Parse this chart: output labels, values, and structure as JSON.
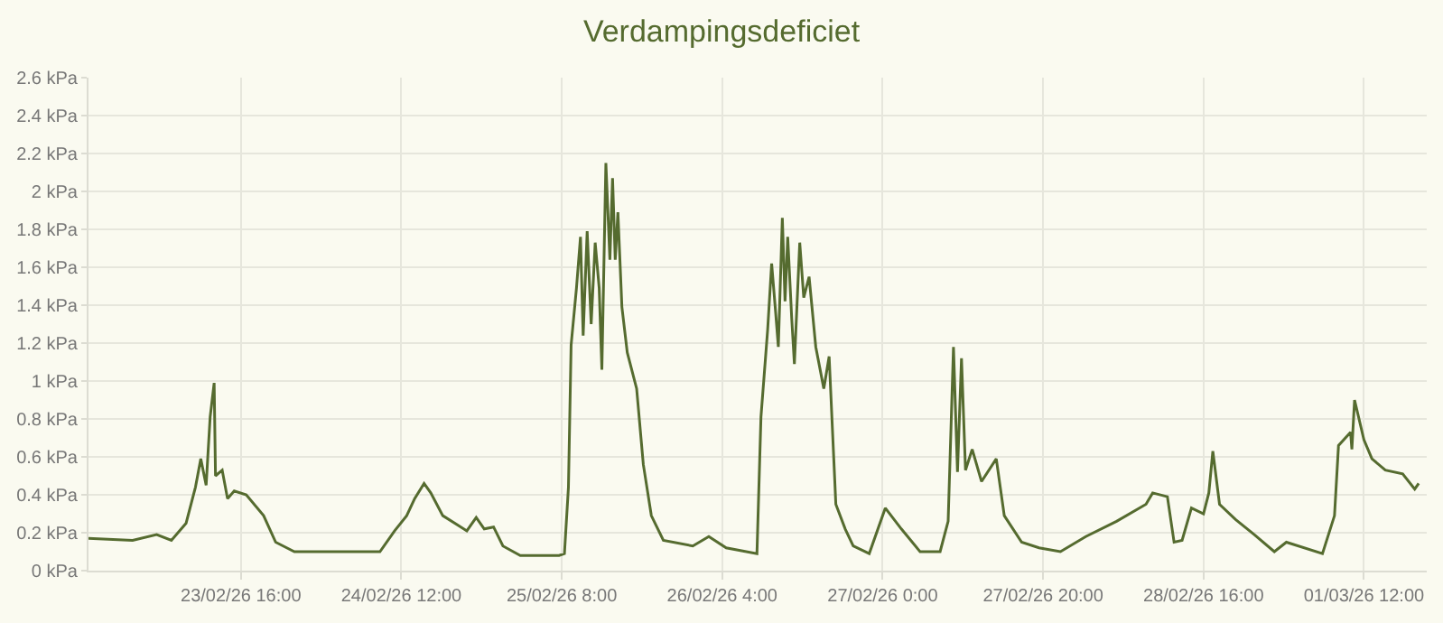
{
  "chart_data": {
    "type": "line",
    "title": "Verdampingsdeficiet",
    "x": [
      "--02-22T21:00",
      "--02-23T02:30",
      "--02-23T05:30",
      "--02-23T07:20",
      "--02-23T09:10",
      "--02-23T10:20",
      "--02-23T11:00",
      "--02-23T11:40",
      "--02-23T12:10",
      "--02-23T12:40",
      "--02-23T12:50",
      "--02-23T13:40",
      "--02-23T14:20",
      "--02-23T15:10",
      "--02-23T16:40",
      "--02-23T18:50",
      "--02-23T20:20",
      "--02-23T22:40",
      "--02-24T02:20",
      "--02-24T09:20",
      "--02-24T11:10",
      "--02-24T12:40",
      "--02-24T13:40",
      "--02-24T14:50",
      "--02-24T15:40",
      "--02-24T17:10",
      "--02-24T20:10",
      "--02-24T21:20",
      "--02-24T22:20",
      "--02-24T23:30",
      "--02-25T00:40",
      "--02-25T02:50",
      "--02-25T07:40",
      "--02-25T08:20",
      "--02-25T08:50",
      "--02-25T09:10",
      "--02-25T09:50",
      "--02-25T10:20",
      "--02-25T10:40",
      "--02-25T11:10",
      "--02-25T11:40",
      "--02-25T12:10",
      "--02-25T12:40",
      "--02-25T13:00",
      "--02-25T13:30",
      "--02-25T14:00",
      "--02-25T14:20",
      "--02-25T14:40",
      "--02-25T15:00",
      "--02-25T15:30",
      "--02-25T16:10",
      "--02-25T17:20",
      "--02-25T18:10",
      "--02-25T19:10",
      "--02-25T20:40",
      "--02-26T00:20",
      "--02-26T02:20",
      "--02-26T04:30",
      "--02-26T08:20",
      "--02-26T08:50",
      "--02-26T09:40",
      "--02-26T10:10",
      "--02-26T10:40",
      "--02-26T11:00",
      "--02-26T11:30",
      "--02-26T11:50",
      "--02-26T12:10",
      "--02-26T12:40",
      "--02-26T13:00",
      "--02-26T13:40",
      "--02-26T14:10",
      "--02-26T14:50",
      "--02-26T15:40",
      "--02-26T16:40",
      "--02-26T17:20",
      "--02-26T18:10",
      "--02-26T19:20",
      "--02-26T20:20",
      "--02-26T22:20",
      "--02-27T00:20",
      "--02-27T02:20",
      "--02-27T04:40",
      "--02-27T07:10",
      "--02-27T08:10",
      "--02-27T08:50",
      "--02-27T09:20",
      "--02-27T09:50",
      "--02-27T10:20",
      "--02-27T11:10",
      "--02-27T12:20",
      "--02-27T14:10",
      "--02-27T15:10",
      "--02-27T17:20",
      "--02-27T19:30",
      "--02-27T22:10",
      "--02-28T01:20",
      "--02-28T05:10",
      "--02-28T08:50",
      "--02-28T09:40",
      "--02-28T11:30",
      "--02-28T12:20",
      "--02-28T13:20",
      "--02-28T14:30",
      "--02-28T16:00",
      "--02-28T16:40",
      "--02-28T17:10",
      "--02-28T18:00",
      "--02-28T20:00",
      "--02-28T22:20",
      "--03-01T00:50",
      "--03-01T02:20",
      "--03-01T06:50",
      "--03-01T08:20",
      "--03-01T08:50",
      "--03-01T10:20",
      "--03-01T10:30",
      "--03-01T10:50",
      "--03-01T12:00",
      "--03-01T13:00",
      "--03-01T14:40",
      "--03-01T16:50",
      "--03-01T18:20",
      "--03-01T18:50"
    ],
    "series": [
      {
        "color": "#556b2f",
        "values": [
          0.17,
          0.16,
          0.19,
          0.16,
          0.25,
          0.44,
          0.59,
          0.45,
          0.81,
          0.99,
          0.5,
          0.53,
          0.38,
          0.42,
          0.4,
          0.29,
          0.15,
          0.1,
          0.1,
          0.1,
          0.21,
          0.29,
          0.38,
          0.46,
          0.41,
          0.29,
          0.21,
          0.28,
          0.22,
          0.23,
          0.13,
          0.08,
          0.08,
          0.09,
          0.44,
          1.19,
          1.49,
          1.76,
          1.24,
          1.79,
          1.3,
          1.73,
          1.49,
          1.06,
          2.15,
          1.64,
          2.07,
          1.64,
          1.89,
          1.39,
          1.15,
          0.96,
          0.56,
          0.29,
          0.16,
          0.13,
          0.18,
          0.12,
          0.09,
          0.81,
          1.27,
          1.62,
          1.36,
          1.18,
          1.86,
          1.42,
          1.76,
          1.33,
          1.09,
          1.73,
          1.44,
          1.55,
          1.18,
          0.96,
          1.13,
          0.35,
          0.22,
          0.13,
          0.09,
          0.33,
          0.22,
          0.1,
          0.1,
          0.26,
          1.18,
          0.52,
          1.12,
          0.53,
          0.64,
          0.47,
          0.59,
          0.29,
          0.15,
          0.12,
          0.1,
          0.18,
          0.26,
          0.35,
          0.41,
          0.39,
          0.15,
          0.16,
          0.33,
          0.3,
          0.41,
          0.63,
          0.35,
          0.27,
          0.19,
          0.1,
          0.15,
          0.09,
          0.29,
          0.66,
          0.73,
          0.64,
          0.9,
          0.69,
          0.59,
          0.53,
          0.51,
          0.43,
          0.46
        ]
      }
    ],
    "xlim": [
      "--02-22T21:00",
      "--03-01T19:50"
    ],
    "xticks": [
      {
        "value": "--02-23T16:00",
        "label": "23/02/26 16:00"
      },
      {
        "value": "--02-24T12:00",
        "label": "24/02/26 12:00"
      },
      {
        "value": "--02-25T08:00",
        "label": "25/02/26 8:00"
      },
      {
        "value": "--02-26T04:00",
        "label": "26/02/26 4:00"
      },
      {
        "value": "--02-27T00:00",
        "label": "27/02/26 0:00"
      },
      {
        "value": "--02-27T20:00",
        "label": "27/02/26 20:00"
      },
      {
        "value": "--02-28T16:00",
        "label": "28/02/26 16:00"
      },
      {
        "value": "--03-01T12:00",
        "label": "01/03/26 12:00"
      }
    ],
    "ylim": [
      0,
      2.6
    ],
    "yticks": [
      {
        "value": 0,
        "label": "0 kPa"
      },
      {
        "value": 0.2,
        "label": "0.2 kPa"
      },
      {
        "value": 0.4,
        "label": "0.4 kPa"
      },
      {
        "value": 0.6,
        "label": "0.6 kPa"
      },
      {
        "value": 0.8,
        "label": "0.8 kPa"
      },
      {
        "value": 1,
        "label": "1 kPa"
      },
      {
        "value": 1.2,
        "label": "1.2 kPa"
      },
      {
        "value": 1.4,
        "label": "1.4 kPa"
      },
      {
        "value": 1.6,
        "label": "1.6 kPa"
      },
      {
        "value": 1.8,
        "label": "1.8 kPa"
      },
      {
        "value": 2,
        "label": "2 kPa"
      },
      {
        "value": 2.2,
        "label": "2.2 kPa"
      },
      {
        "value": 2.4,
        "label": "2.4 kPa"
      },
      {
        "value": 2.6,
        "label": "2.6 kPa"
      }
    ],
    "grid": true,
    "marker": "none",
    "line_style": "solid"
  }
}
